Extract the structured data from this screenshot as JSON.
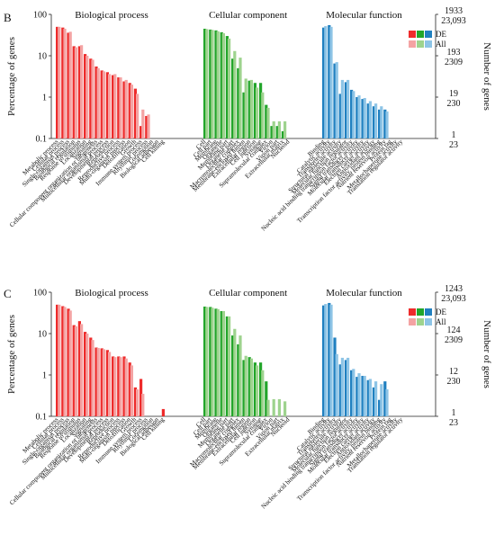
{
  "colors": {
    "bp_de": "#ee2b2b",
    "bp_all": "#f4a3a3",
    "cc_de": "#22a52a",
    "cc_all": "#9ed38e",
    "mf_de": "#2080c0",
    "mf_all": "#8dc4e6"
  },
  "chart_data": [
    {
      "panel": "B",
      "type": "bar",
      "yscale": "log",
      "ylabel": "Percentage of genes",
      "ylabel_right": "Number of genes",
      "left_ticks": [
        "0.1",
        "1",
        "10",
        "100"
      ],
      "right_ticks_de": [
        "1933",
        "193",
        "19",
        "1"
      ],
      "right_ticks_all": [
        "23,093",
        "2309",
        "230",
        "23"
      ],
      "legend": [
        "DE",
        "All"
      ],
      "groups": [
        {
          "name": "Biological process",
          "color_key": "bp",
          "categories": [
            "Metabolic process",
            "Cellular process",
            "Single-organism process",
            "Biological regulation",
            "Response to stimulus",
            "Localization",
            "Signaling",
            "Cellular component organization or biogenesis",
            "Multicellular organismal process",
            "Developmental process",
            "Reproduction",
            "Reproductive process",
            "Multi-organism process",
            "Detoxification",
            "Growth",
            "Immune system process",
            "Rhythmic process",
            "Locomotion",
            "Biological adhesion",
            "Cell killing"
          ],
          "de": [
            50,
            48,
            36,
            17,
            17,
            11,
            8.5,
            5.5,
            4.4,
            4,
            3.4,
            3,
            2.4,
            2.2,
            1.6,
            0.2,
            0.35,
            null,
            null,
            null
          ],
          "all": [
            50,
            45,
            38,
            16,
            18,
            10,
            8,
            5,
            4.2,
            3.6,
            3.6,
            3,
            2.6,
            2,
            1.2,
            0.5,
            0.38,
            null,
            null,
            null
          ]
        },
        {
          "name": "Cellular component",
          "color_key": "cc",
          "categories": [
            "Cell",
            "Cell part",
            "Membrane",
            "Organelle",
            "Membrane part",
            "Organelle part",
            "Macromolecular complex",
            "Membrane-enclosed lumen",
            "Extracellular region",
            "Cell junction",
            "Synapse",
            "Supramolecular complex",
            "Virion",
            "Virion part",
            "Extracellular matrix",
            "Nucleoid"
          ],
          "de": [
            45,
            43,
            41,
            37,
            30,
            8.5,
            5,
            1.3,
            2.5,
            2.2,
            2.2,
            0.65,
            0.2,
            0.2,
            0.15,
            null
          ],
          "all": [
            44,
            42,
            39,
            35,
            26,
            13,
            9,
            2.8,
            2.6,
            1.7,
            1.3,
            0.55,
            0.26,
            0.26,
            0.26,
            null
          ]
        },
        {
          "name": "Molecular function",
          "color_key": "mf",
          "categories": [
            "Binding",
            "Catalytic activity",
            "Transporter activity",
            "Structural molecule activity",
            "Molecular function regulator",
            "Nucleic acid binding transcription factor activity",
            "Signal transducer activity",
            "Molecular transducer activity",
            "Electron carrier activity",
            "Antioxidant activity",
            "Transcription factor activity, protein binding",
            "Nutrient reservoir activity",
            "Protein tag",
            "Metallochaperone activity",
            "Translation regulator activity"
          ],
          "de": [
            48,
            55,
            6.5,
            1.2,
            2.3,
            1.5,
            1.0,
            0.9,
            0.7,
            0.6,
            0.5,
            0.5,
            null,
            null,
            null
          ],
          "all": [
            52,
            50,
            7,
            2.6,
            2.6,
            1.4,
            1.1,
            0.95,
            0.8,
            0.7,
            0.6,
            0.45,
            null,
            null,
            null
          ]
        }
      ]
    },
    {
      "panel": "C",
      "type": "bar",
      "yscale": "log",
      "ylabel": "Percentage of genes",
      "ylabel_right": "Number of genes",
      "left_ticks": [
        "0.1",
        "1",
        "10",
        "100"
      ],
      "right_ticks_de": [
        "1243",
        "124",
        "12",
        "1"
      ],
      "right_ticks_all": [
        "23,093",
        "2309",
        "230",
        "23"
      ],
      "legend": [
        "DE",
        "All"
      ],
      "groups": [
        {
          "name": "Biological process",
          "color_key": "bp",
          "categories": [
            "Metabolic process",
            "Cellular process",
            "Single-organism process",
            "Biological regulation",
            "Response to stimulus",
            "Localization",
            "Signaling",
            "Cellular component organization or biogenesis",
            "Multicellular organismal process",
            "Developmental process",
            "Reproduction",
            "Reproductive process",
            "Multi-organism process",
            "Detoxification",
            "Growth",
            "Immune system process",
            "Rhythmic process",
            "Locomotion",
            "Biological adhesion",
            "Cell killing"
          ],
          "de": [
            50,
            46,
            40,
            16,
            20,
            11,
            8,
            4.6,
            4.4,
            4,
            2.8,
            2.8,
            2.8,
            2,
            0.5,
            0.8,
            null,
            null,
            null,
            0.15
          ],
          "all": [
            50,
            44,
            36,
            15,
            17,
            10,
            7,
            4.5,
            4.2,
            3.6,
            2.7,
            2.7,
            2.5,
            1.7,
            0.45,
            0.35,
            null,
            null,
            null,
            null
          ]
        },
        {
          "name": "Cellular component",
          "color_key": "cc",
          "categories": [
            "Cell",
            "Cell part",
            "Membrane",
            "Organelle",
            "Membrane part",
            "Organelle part",
            "Macromolecular complex",
            "Membrane-enclosed lumen",
            "Extracellular region",
            "Cell junction",
            "Synapse",
            "Supramolecular complex",
            "Virion",
            "Virion part",
            "Extracellular matrix",
            "Nucleoid"
          ],
          "de": [
            45,
            44,
            40,
            35,
            26,
            9,
            5.5,
            2.3,
            2.7,
            2.0,
            2.0,
            0.7,
            null,
            null,
            null,
            null
          ],
          "all": [
            44,
            42,
            39,
            35,
            26,
            13,
            9,
            2.9,
            2.5,
            1.7,
            1.3,
            0.25,
            0.26,
            0.26,
            0.23,
            null
          ]
        },
        {
          "name": "Molecular function",
          "color_key": "mf",
          "categories": [
            "Binding",
            "Catalytic activity",
            "Transporter activity",
            "Structural molecule activity",
            "Molecular function regulator",
            "Nucleic acid binding transcription factor activity",
            "Signal transducer activity",
            "Molecular transducer activity",
            "Electron carrier activity",
            "Antioxidant activity",
            "Transcription factor activity, protein binding",
            "Nutrient reservoir activity",
            "Protein tag",
            "Metallochaperone activity",
            "Translation regulator activity"
          ],
          "de": [
            48,
            55,
            8,
            1.8,
            2.3,
            1.3,
            0.9,
            0.95,
            0.75,
            0.5,
            0.25,
            0.7,
            null,
            null,
            null
          ],
          "all": [
            52,
            50,
            3.2,
            2.6,
            2.6,
            1.4,
            1.1,
            0.95,
            0.8,
            0.7,
            0.6,
            0.45,
            null,
            null,
            null
          ]
        }
      ]
    }
  ]
}
